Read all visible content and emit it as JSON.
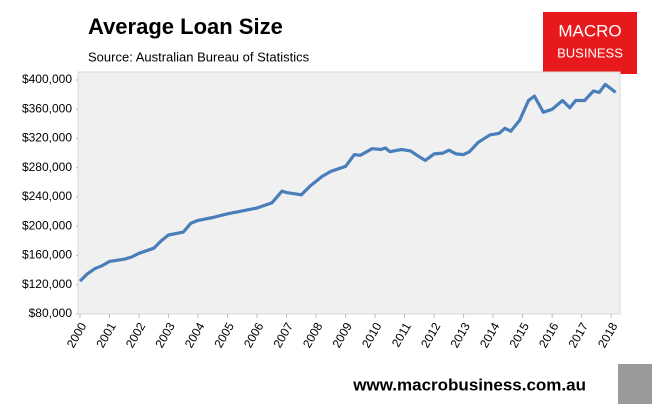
{
  "chart_data": {
    "type": "line",
    "title": "Average Loan Size",
    "subtitle": "Source: Australian Bureau of Statistics",
    "logo": [
      "MACRO",
      "BUSINESS"
    ],
    "footer": "www.macrobusiness.com.au",
    "x": [
      2000.0,
      2000.25,
      2000.5,
      2000.75,
      2001.0,
      2001.5,
      2001.75,
      2002.0,
      2002.5,
      2002.75,
      2003.0,
      2003.25,
      2003.5,
      2003.75,
      2004.0,
      2004.5,
      2005.0,
      2005.5,
      2006.0,
      2006.5,
      2006.85,
      2007.0,
      2007.5,
      2007.8,
      2008.2,
      2008.5,
      2009.0,
      2009.3,
      2009.5,
      2009.9,
      2010.2,
      2010.35,
      2010.5,
      2010.9,
      2011.2,
      2011.5,
      2011.7,
      2012.0,
      2012.3,
      2012.5,
      2012.75,
      2013.0,
      2013.2,
      2013.5,
      2013.9,
      2014.2,
      2014.4,
      2014.6,
      2014.9,
      2015.2,
      2015.4,
      2015.7,
      2016.0,
      2016.35,
      2016.6,
      2016.8,
      2017.1,
      2017.4,
      2017.6,
      2017.8,
      2018.0,
      2018.15
    ],
    "values": [
      125000,
      135000,
      142000,
      146000,
      152000,
      155000,
      158000,
      163000,
      170000,
      180000,
      188000,
      190000,
      192000,
      204000,
      208000,
      212000,
      217000,
      221000,
      225000,
      232000,
      248000,
      246000,
      243000,
      255000,
      268000,
      275000,
      282000,
      298000,
      297000,
      306000,
      305000,
      307000,
      302000,
      305000,
      303000,
      295000,
      290000,
      299000,
      300000,
      304000,
      299000,
      298000,
      302000,
      315000,
      325000,
      327000,
      334000,
      330000,
      345000,
      372000,
      378000,
      356000,
      360000,
      372000,
      362000,
      372000,
      372000,
      385000,
      383000,
      394000,
      388000,
      383000
    ],
    "color": "#4a7ebb",
    "xlim": [
      2000,
      2018.3
    ],
    "xticks": [
      2000,
      2001,
      2002,
      2003,
      2004,
      2005,
      2006,
      2007,
      2008,
      2009,
      2010,
      2011,
      2012,
      2013,
      2014,
      2015,
      2016,
      2017,
      2018
    ],
    "ylim": [
      80000,
      400000
    ],
    "yticks": [
      {
        "value": 80000,
        "label": "$80,000"
      },
      {
        "value": 120000,
        "label": "$120,000"
      },
      {
        "value": 160000,
        "label": "$160,000"
      },
      {
        "value": 200000,
        "label": "$200,000"
      },
      {
        "value": 240000,
        "label": "$240,000"
      },
      {
        "value": 280000,
        "label": "$280,000"
      },
      {
        "value": 320000,
        "label": "$320,000"
      },
      {
        "value": 360000,
        "label": "$360,000"
      },
      {
        "value": 400000,
        "label": "$400,000"
      }
    ],
    "grid": false
  }
}
